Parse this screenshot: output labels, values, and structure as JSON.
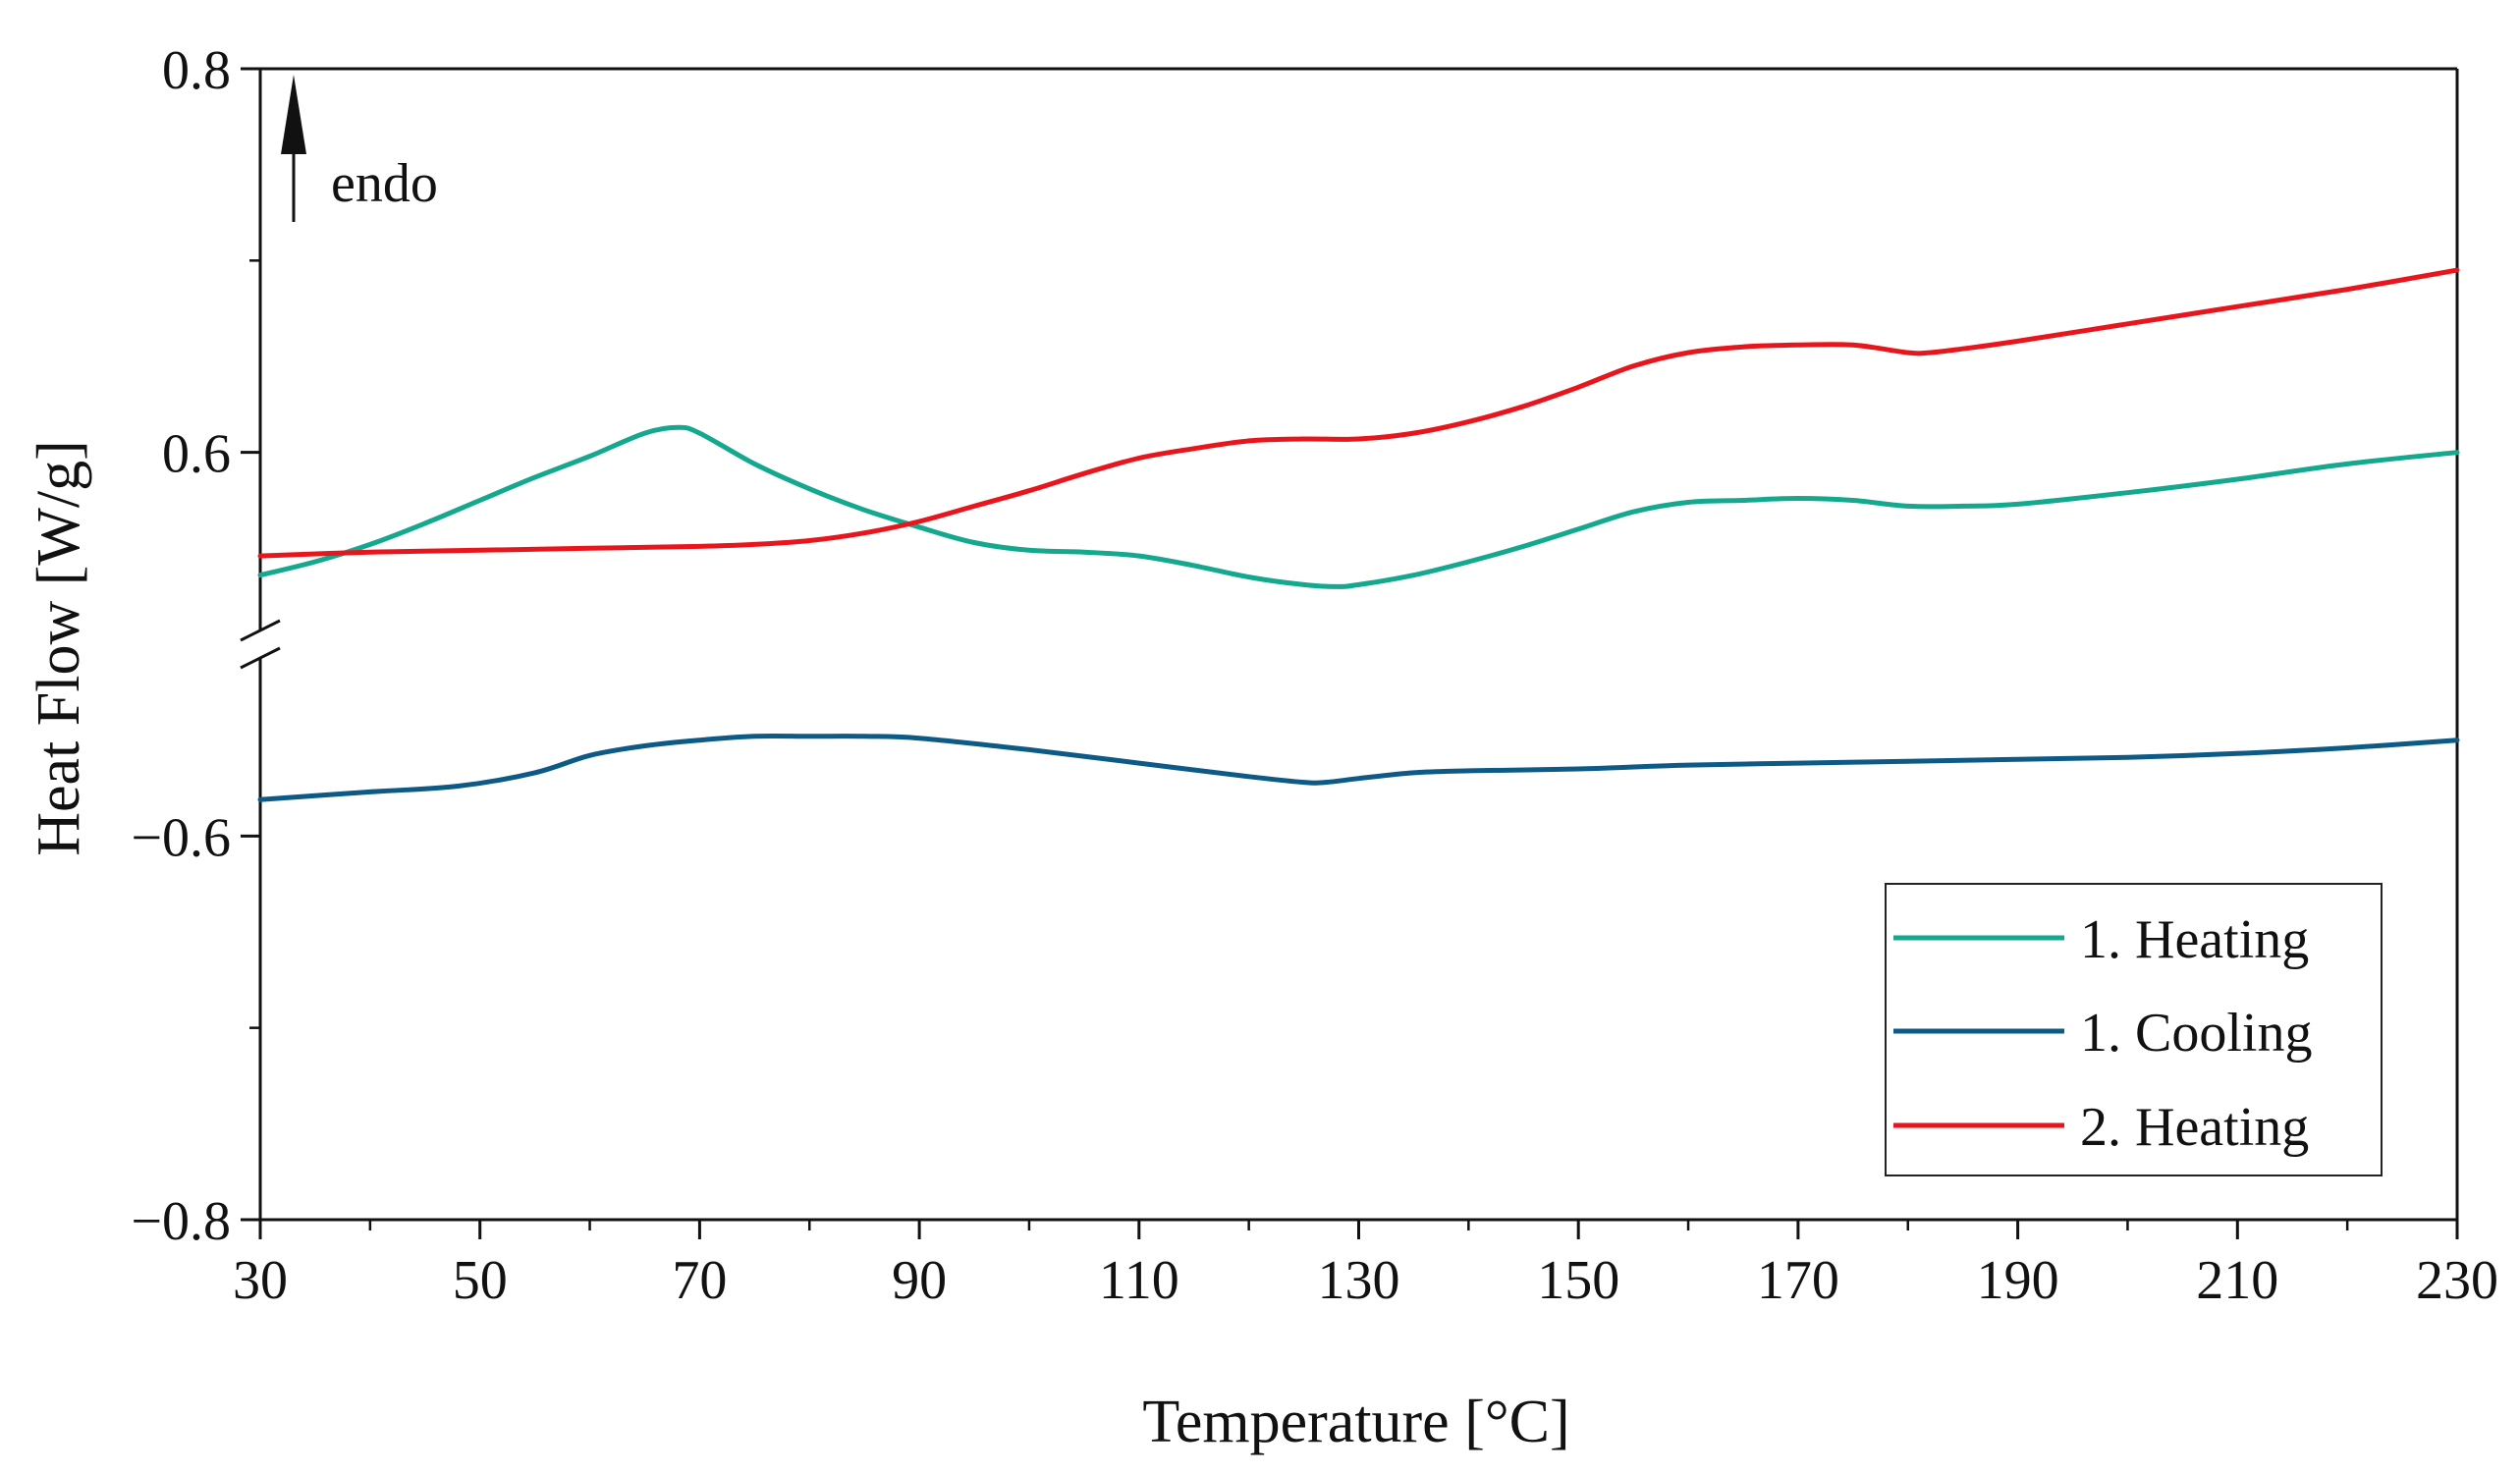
{
  "chart_data": {
    "type": "line",
    "title": "",
    "xlabel": "Temperature [°C]",
    "ylabel": "Heat Flow [W/g]",
    "xlim": [
      30,
      230
    ],
    "x_ticks": [
      30,
      50,
      70,
      90,
      110,
      130,
      150,
      170,
      190,
      210,
      230
    ],
    "x_tick_labels": [
      "30",
      "50",
      "70",
      "90",
      "110",
      "130",
      "150",
      "170",
      "190",
      "210",
      "230"
    ],
    "y_axis_break": true,
    "y_upper_segment": {
      "range": [
        0.5,
        0.8
      ],
      "ticks": [
        0.6,
        0.8
      ],
      "tick_labels": [
        "0.6",
        "0.8"
      ]
    },
    "y_lower_segment": {
      "range": [
        -0.8,
        -0.5
      ],
      "ticks": [
        -0.8,
        -0.6
      ],
      "tick_labels": [
        "−0.8",
        "−0.6"
      ]
    },
    "annotation": {
      "text": "endo",
      "symbol": "arrow-up"
    },
    "legend_position": "bottom-right",
    "colors": {
      "heating1": "#14a88e",
      "cooling1": "#0d5a86",
      "heating2": "#e8161c",
      "axis": "#111111"
    },
    "series": [
      {
        "name": "1. Heating",
        "segment": "upper",
        "color": "#14a88e",
        "x": [
          30,
          35,
          40,
          45,
          50,
          55,
          60,
          65,
          68,
          70,
          75,
          80,
          85,
          90,
          95,
          100,
          105,
          110,
          115,
          120,
          125,
          128,
          130,
          135,
          140,
          145,
          150,
          155,
          160,
          165,
          170,
          175,
          180,
          185,
          190,
          200,
          210,
          220,
          230
        ],
        "y": [
          0.536,
          0.543,
          0.552,
          0.563,
          0.575,
          0.587,
          0.598,
          0.61,
          0.613,
          0.61,
          0.594,
          0.581,
          0.57,
          0.561,
          0.553,
          0.549,
          0.548,
          0.546,
          0.541,
          0.535,
          0.531,
          0.53,
          0.531,
          0.536,
          0.543,
          0.551,
          0.56,
          0.569,
          0.574,
          0.575,
          0.576,
          0.575,
          0.572,
          0.572,
          0.573,
          0.579,
          0.586,
          0.594,
          0.6
        ]
      },
      {
        "name": "1. Cooling",
        "segment": "lower",
        "color": "#0d5a86",
        "x": [
          30,
          40,
          48,
          55,
          60,
          65,
          70,
          75,
          80,
          85,
          90,
          100,
          110,
          120,
          125,
          127,
          130,
          135,
          140,
          150,
          160,
          170,
          180,
          190,
          200,
          210,
          220,
          230
        ],
        "y": [
          -0.581,
          -0.577,
          -0.574,
          -0.567,
          -0.558,
          -0.553,
          -0.55,
          -0.548,
          -0.548,
          -0.548,
          -0.549,
          -0.555,
          -0.562,
          -0.569,
          -0.572,
          -0.572,
          -0.57,
          -0.567,
          -0.566,
          -0.565,
          -0.563,
          -0.562,
          -0.561,
          -0.56,
          -0.559,
          -0.557,
          -0.554,
          -0.55
        ]
      },
      {
        "name": "2. Heating",
        "segment": "upper",
        "color": "#e8161c",
        "x": [
          30,
          40,
          50,
          60,
          70,
          75,
          80,
          85,
          90,
          95,
          100,
          105,
          110,
          115,
          120,
          125,
          130,
          135,
          140,
          145,
          150,
          155,
          160,
          165,
          170,
          175,
          180,
          182,
          185,
          190,
          200,
          210,
          220,
          230
        ],
        "y": [
          0.546,
          0.548,
          0.549,
          0.55,
          0.551,
          0.552,
          0.554,
          0.558,
          0.564,
          0.572,
          0.58,
          0.589,
          0.597,
          0.602,
          0.606,
          0.607,
          0.607,
          0.61,
          0.616,
          0.624,
          0.634,
          0.645,
          0.652,
          0.655,
          0.656,
          0.656,
          0.652,
          0.652,
          0.654,
          0.658,
          0.667,
          0.676,
          0.685,
          0.695
        ]
      }
    ]
  }
}
